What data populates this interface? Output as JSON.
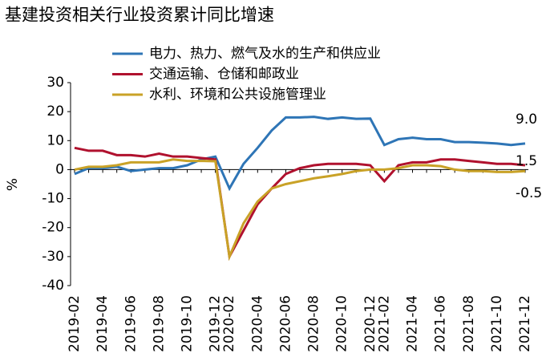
{
  "chart_data": {
    "type": "line",
    "title": "基建投资相关行业投资累计同比增速",
    "y_label": "%",
    "categories": [
      "2019-02",
      null,
      "2019-04",
      null,
      "2019-06",
      null,
      "2019-08",
      null,
      "2019-10",
      null,
      "2019-12",
      "2020-02",
      null,
      "2020-04",
      null,
      "2020-06",
      null,
      "2020-08",
      null,
      "2020-10",
      null,
      "2020-12",
      "2021-02",
      null,
      "2021-04",
      null,
      "2021-06",
      null,
      "2021-08",
      null,
      "2021-10",
      null,
      "2021-12"
    ],
    "series": [
      {
        "name": "电力、热力、燃气及水的生产和供应业",
        "color": "#2e75b6",
        "values": [
          -1.5,
          0.5,
          0.5,
          1,
          -0.5,
          0,
          0.5,
          0.5,
          1.5,
          3.5,
          4.5,
          -6.5,
          2,
          7.5,
          13.5,
          18,
          18,
          18.2,
          17.5,
          18,
          17.5,
          17.6,
          8.5,
          10.5,
          11,
          10.5,
          10.5,
          9.5,
          9.5,
          9.3,
          9,
          8.5,
          9.0
        ],
        "value_labels": [
          null,
          null,
          null,
          null,
          null,
          null,
          null,
          null,
          null,
          null,
          null,
          null,
          null,
          null,
          null,
          null,
          null,
          null,
          null,
          null,
          null,
          null,
          null,
          null,
          null,
          null,
          null,
          null,
          null,
          null,
          null,
          null,
          "9.0"
        ]
      },
      {
        "name": "交通运输、仓储和邮政业",
        "color": "#b0112e",
        "values": [
          7.5,
          6.5,
          6.5,
          5,
          5,
          4.5,
          5.5,
          4.5,
          4.5,
          4,
          3.5,
          -30,
          -21,
          -12,
          -6.5,
          -1.5,
          0.5,
          1.5,
          2,
          2,
          2,
          1.5,
          -4,
          1.5,
          2.5,
          2.5,
          3.5,
          3.5,
          3,
          2.5,
          2,
          2,
          1.5
        ],
        "value_labels": [
          null,
          null,
          null,
          null,
          null,
          null,
          null,
          null,
          null,
          null,
          null,
          null,
          null,
          null,
          null,
          null,
          null,
          null,
          null,
          null,
          null,
          null,
          null,
          null,
          null,
          null,
          null,
          null,
          null,
          null,
          null,
          null,
          "1.5"
        ]
      },
      {
        "name": "水利、环境和公共设施管理业",
        "color": "#c9a227",
        "values": [
          0,
          1,
          1,
          1.5,
          2.5,
          2.5,
          2.5,
          3.5,
          3,
          3,
          2.9,
          -30,
          -18.5,
          -11,
          -6.5,
          -5,
          -4,
          -3,
          -2.3,
          -1.5,
          -0.5,
          0,
          0,
          0.5,
          1.5,
          1.5,
          1.2,
          0,
          -0.5,
          -0.5,
          -0.8,
          -0.8,
          -0.5
        ],
        "value_labels": [
          null,
          null,
          null,
          null,
          null,
          null,
          null,
          null,
          null,
          null,
          null,
          null,
          null,
          null,
          null,
          null,
          null,
          null,
          null,
          null,
          null,
          null,
          null,
          null,
          null,
          null,
          null,
          null,
          null,
          null,
          null,
          null,
          "-0.5"
        ]
      }
    ],
    "ylim": [
      -40,
      30
    ],
    "yticks": [
      -40,
      -30,
      -20,
      -10,
      0,
      10,
      20,
      30
    ]
  }
}
